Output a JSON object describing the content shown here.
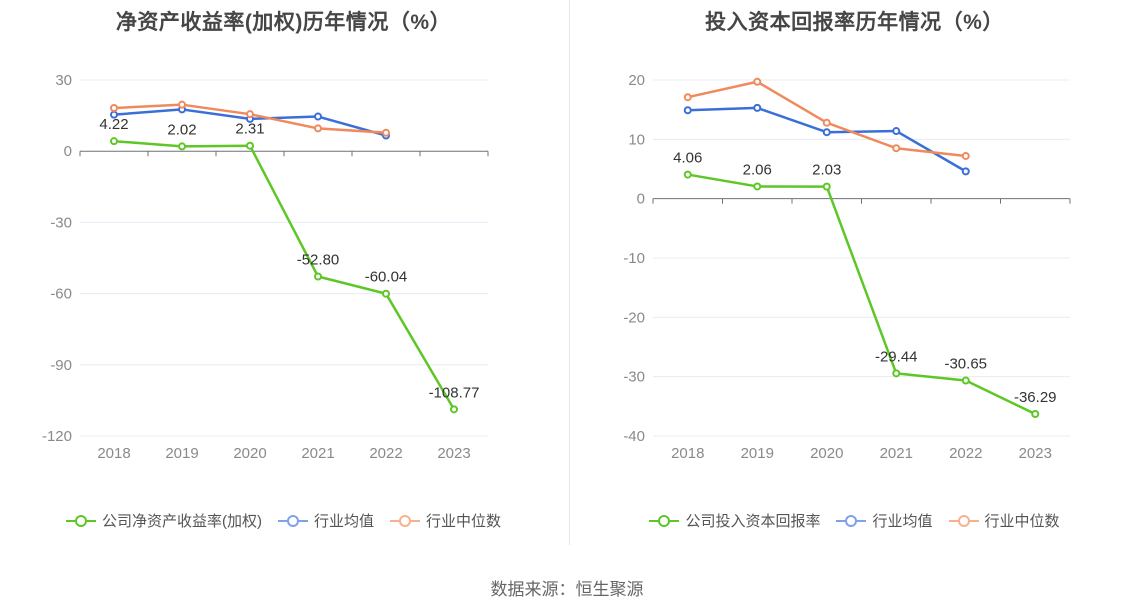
{
  "colors": {
    "company": "#5dc726",
    "industry_avg": "#3a6fd8",
    "industry_median": "#f08a5c",
    "legend_avg": "#7fa1ea",
    "legend_median": "#f8b090"
  },
  "source": "数据来源：恒生聚源",
  "chart_data": [
    {
      "type": "line",
      "title": "净资产收益率(加权)历年情况（%）",
      "categories": [
        "2018",
        "2019",
        "2020",
        "2021",
        "2022",
        "2023"
      ],
      "ylim": [
        -120,
        30
      ],
      "yticks": [
        "30",
        "0",
        "-30",
        "-60",
        "-90",
        "-120"
      ],
      "ytick_values": [
        30,
        0,
        -30,
        -60,
        -90,
        -120
      ],
      "grid": true,
      "legend_position": "bottom",
      "series": [
        {
          "name": "公司净资产收益率(加权)",
          "color": "#5dc726",
          "values": [
            4.22,
            2.02,
            2.31,
            -52.8,
            -60.04,
            -108.77
          ],
          "labels": [
            "4.22",
            "2.02",
            "2.31",
            "-52.80",
            "-60.04",
            "-108.77"
          ]
        },
        {
          "name": "行业均值",
          "color": "#3a6fd8",
          "values": [
            15.4,
            17.6,
            13.6,
            14.6,
            6.6,
            null
          ]
        },
        {
          "name": "行业中位数",
          "color": "#f08a5c",
          "values": [
            18.2,
            19.6,
            15.6,
            9.6,
            7.8,
            null
          ]
        }
      ]
    },
    {
      "type": "line",
      "title": "投入资本回报率历年情况（%）",
      "categories": [
        "2018",
        "2019",
        "2020",
        "2021",
        "2022",
        "2023"
      ],
      "ylim": [
        -40,
        20
      ],
      "yticks": [
        "20",
        "10",
        "0",
        "-10",
        "-20",
        "-30",
        "-40"
      ],
      "ytick_values": [
        20,
        10,
        0,
        -10,
        -20,
        -30,
        -40
      ],
      "grid": true,
      "legend_position": "bottom",
      "series": [
        {
          "name": "公司投入资本回报率",
          "color": "#5dc726",
          "values": [
            4.06,
            2.06,
            2.03,
            -29.44,
            -30.65,
            -36.29
          ],
          "labels": [
            "4.06",
            "2.06",
            "2.03",
            "-29.44",
            "-30.65",
            "-36.29"
          ]
        },
        {
          "name": "行业均值",
          "color": "#3a6fd8",
          "values": [
            14.9,
            15.3,
            11.2,
            11.4,
            4.6,
            null
          ]
        },
        {
          "name": "行业中位数",
          "color": "#f08a5c",
          "values": [
            17.1,
            19.7,
            12.8,
            8.5,
            7.2,
            null
          ]
        }
      ]
    }
  ]
}
